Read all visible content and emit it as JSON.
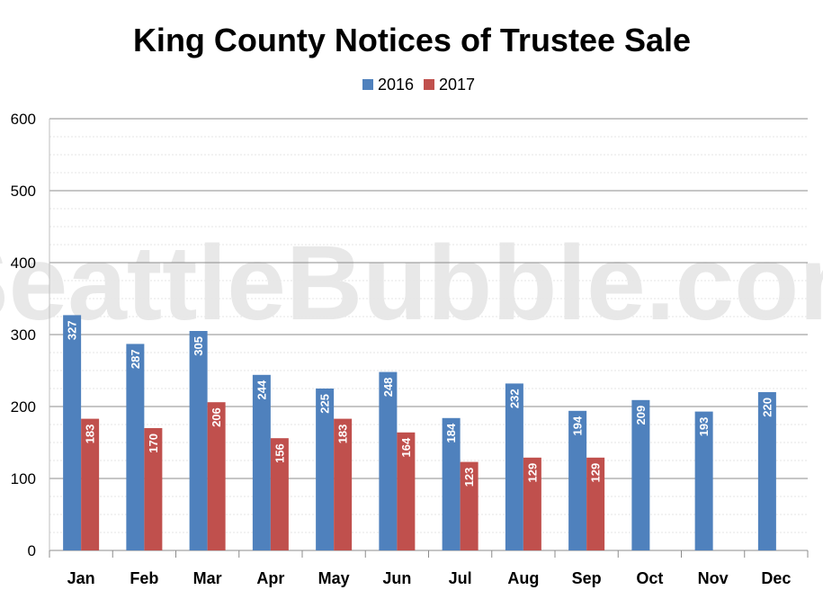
{
  "watermark": "SeattleBubble.com",
  "chart_data": {
    "type": "bar",
    "title": "King County Notices of Trustee Sale",
    "categories": [
      "Jan",
      "Feb",
      "Mar",
      "Apr",
      "May",
      "Jun",
      "Jul",
      "Aug",
      "Sep",
      "Oct",
      "Nov",
      "Dec"
    ],
    "series": [
      {
        "name": "2016",
        "color": "#4f81bd",
        "values": [
          327,
          287,
          305,
          244,
          225,
          248,
          184,
          232,
          194,
          209,
          193,
          220
        ]
      },
      {
        "name": "2017",
        "color": "#c0504d",
        "values": [
          183,
          170,
          206,
          156,
          183,
          164,
          123,
          129,
          129,
          null,
          null,
          null
        ]
      }
    ],
    "ylim": [
      0,
      600
    ],
    "yticks": [
      0,
      100,
      200,
      300,
      400,
      500,
      600
    ],
    "minor_step": 25,
    "xlabel": "",
    "ylabel": "",
    "legend": "top-center",
    "data_labels": "inside-top-rotated",
    "grid": true
  }
}
